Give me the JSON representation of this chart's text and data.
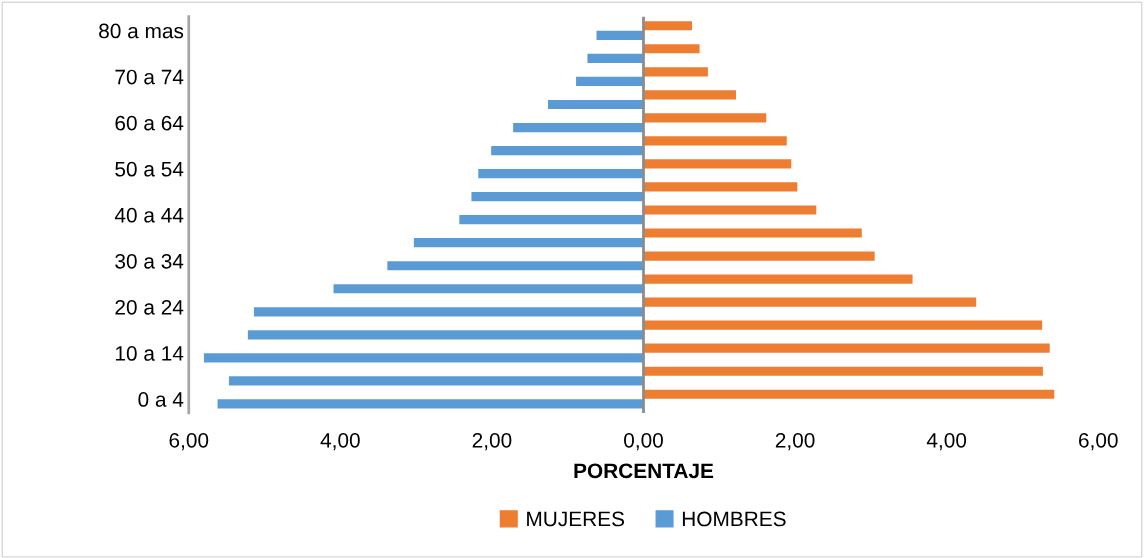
{
  "chart_data": {
    "type": "bar",
    "orientation": "horizontal",
    "xlabel": "PORCENTAJE",
    "categories": [
      "80 a mas",
      null,
      "70 a 74",
      null,
      "60 a 64",
      null,
      "50 a 54",
      null,
      "40 a 44",
      null,
      "30 a 34",
      null,
      "20 a 24",
      null,
      "10 a 14",
      null,
      "0 a 4"
    ],
    "series": [
      {
        "name": "MUJERES",
        "color": "#ed7d31",
        "values": [
          0.64,
          0.74,
          0.85,
          1.22,
          1.62,
          1.89,
          1.95,
          2.03,
          2.28,
          2.88,
          3.05,
          3.55,
          4.39,
          5.26,
          5.36,
          5.27,
          5.42
        ]
      },
      {
        "name": "HOMBRES",
        "color": "#5b9bd5",
        "values": [
          -0.62,
          -0.74,
          -0.89,
          -1.26,
          -1.72,
          -2.01,
          -2.18,
          -2.27,
          -2.43,
          -3.03,
          -3.38,
          -4.09,
          -5.14,
          -5.22,
          -5.8,
          -5.47,
          -5.62
        ]
      }
    ],
    "xlim": [
      -6,
      6
    ],
    "xticks": [
      {
        "value": -6,
        "label": "6,00"
      },
      {
        "value": -4,
        "label": "4,00"
      },
      {
        "value": -2,
        "label": "2,00"
      },
      {
        "value": 0,
        "label": "0,00"
      },
      {
        "value": 2,
        "label": "2,00"
      },
      {
        "value": 4,
        "label": "4,00"
      },
      {
        "value": 6,
        "label": "6,00"
      }
    ],
    "ref_lines": [
      {
        "axis": "x",
        "value": 0,
        "color": "#8c8c8c"
      }
    ],
    "grid": false,
    "legend": "bottom"
  }
}
